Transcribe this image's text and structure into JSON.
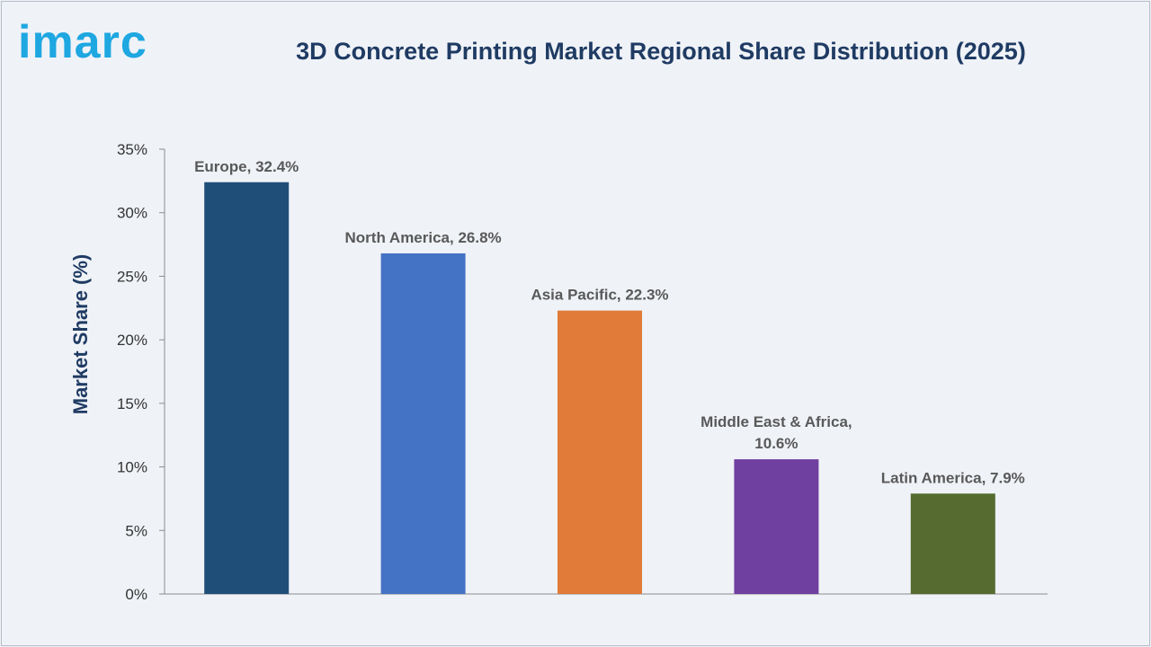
{
  "brand": {
    "logo_text": "imarc"
  },
  "chart_data": {
    "type": "bar",
    "title": "3D Concrete Printing Market Regional Share Distribution (2025)",
    "ylabel": "Market Share (%)",
    "xlabel": "",
    "ylim": [
      0,
      35
    ],
    "yticks": [
      0,
      5,
      10,
      15,
      20,
      25,
      30,
      35
    ],
    "ytick_labels": [
      "0%",
      "5%",
      "10%",
      "15%",
      "20%",
      "25%",
      "30%",
      "35%"
    ],
    "grid": false,
    "categories": [
      "Europe",
      "North America",
      "Asia Pacific",
      "Middle East & Africa",
      "Latin America"
    ],
    "values": [
      32.4,
      26.8,
      22.3,
      10.6,
      7.9
    ],
    "data_labels": [
      [
        "Europe, 32.4%"
      ],
      [
        "North America, 26.8%"
      ],
      [
        "Asia Pacific, 22.3%"
      ],
      [
        "Middle East & Africa,",
        "10.6%"
      ],
      [
        "Latin America, 7.9%"
      ]
    ],
    "colors": [
      "#1f4e79",
      "#4472c4",
      "#e07b39",
      "#7040a0",
      "#556b2f"
    ]
  }
}
